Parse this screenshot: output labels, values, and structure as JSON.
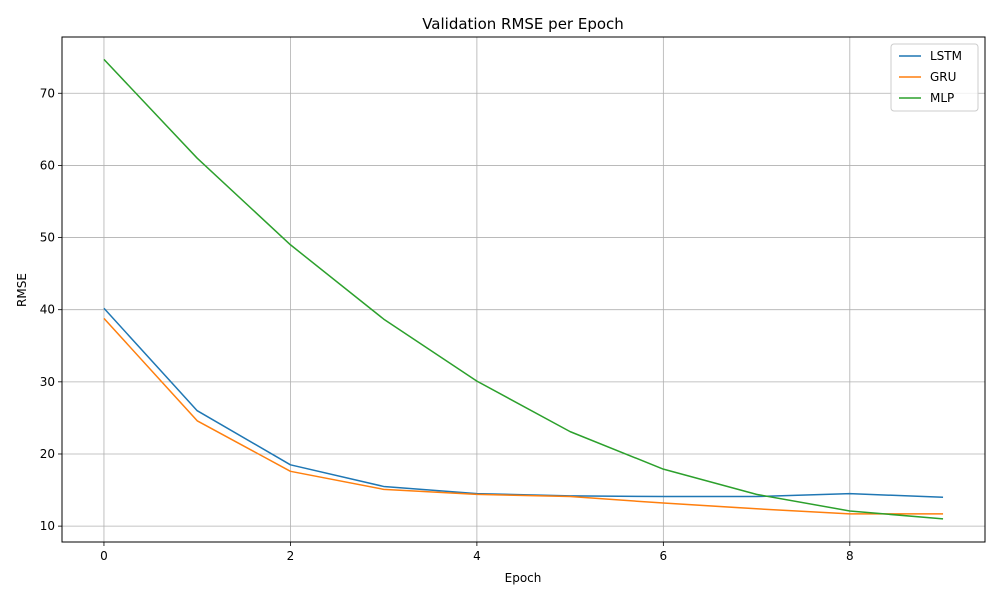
{
  "chart_data": {
    "type": "line",
    "title": "Validation RMSE per Epoch",
    "xlabel": "Epoch",
    "ylabel": "RMSE",
    "x": [
      0,
      1,
      2,
      3,
      4,
      5,
      6,
      7,
      8,
      9
    ],
    "xlim": [
      -0.45,
      9.45
    ],
    "ylim": [
      7.8,
      77.8
    ],
    "xticks": [
      0,
      2,
      4,
      6,
      8
    ],
    "yticks": [
      10,
      20,
      30,
      40,
      50,
      60,
      70
    ],
    "grid": true,
    "legend_position": "top-right",
    "series": [
      {
        "name": "LSTM",
        "color": "#1f77b4",
        "values": [
          40.2,
          26.0,
          18.5,
          15.5,
          14.5,
          14.2,
          14.1,
          14.1,
          14.5,
          14.0
        ]
      },
      {
        "name": "GRU",
        "color": "#ff7f0e",
        "values": [
          38.8,
          24.6,
          17.6,
          15.1,
          14.4,
          14.1,
          13.2,
          12.4,
          11.7,
          11.7
        ]
      },
      {
        "name": "MLP",
        "color": "#2ca02c",
        "values": [
          74.7,
          61.0,
          49.0,
          38.7,
          30.1,
          23.1,
          17.9,
          14.4,
          12.1,
          11.0
        ]
      }
    ]
  }
}
